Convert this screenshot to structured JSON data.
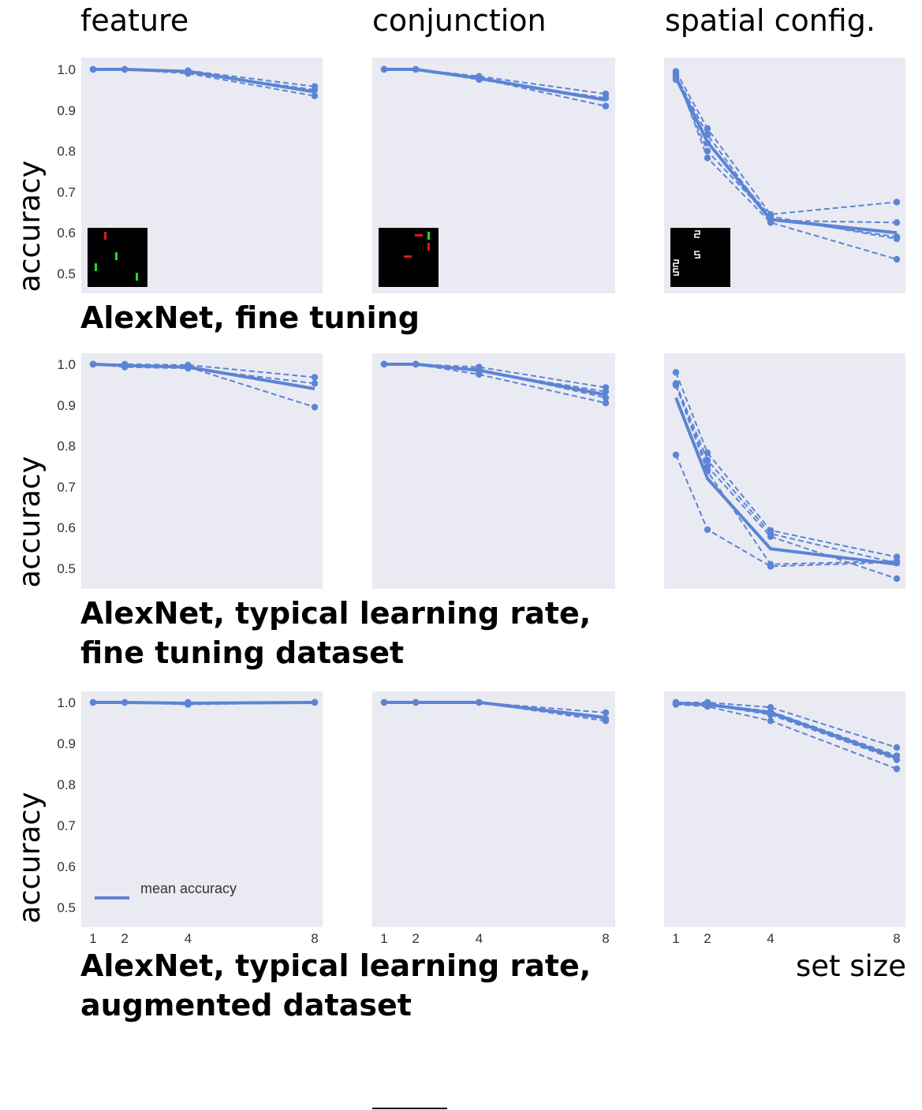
{
  "chart_data": {
    "type": "line",
    "column_titles": [
      "feature",
      "conjunction",
      "spatial config."
    ],
    "row_titles": [
      [
        "AlexNet, fine tuning"
      ],
      [
        "AlexNet, typical learning rate,",
        "fine tuning dataset"
      ],
      [
        "AlexNet, typical learning rate,",
        "augmented dataset"
      ]
    ],
    "ylabel": "accuracy",
    "xlabel": "set size",
    "x": [
      1,
      2,
      4,
      8
    ],
    "xticks": [
      "1",
      "2",
      "4",
      "8"
    ],
    "yticks": [
      "0.5",
      "0.6",
      "0.7",
      "0.8",
      "0.9",
      "1.0"
    ],
    "ylim": [
      0.45,
      1.02
    ],
    "xlim": [
      0.9,
      8.25
    ],
    "legend": {
      "label": "mean accuracy",
      "placement": "lower-left"
    },
    "colors": {
      "line": "#5b84d4",
      "panel_bg": "#eaeaf2"
    },
    "panels": [
      {
        "row": 0,
        "col": 0,
        "mean": [
          1.0,
          1.0,
          0.995,
          0.945
        ],
        "runs": [
          [
            1.0,
            1.0,
            0.997,
            0.958
          ],
          [
            1.0,
            1.0,
            0.99,
            0.935
          ],
          [
            1.0,
            1.0,
            0.993,
            0.95
          ]
        ]
      },
      {
        "row": 0,
        "col": 1,
        "mean": [
          1.0,
          1.0,
          0.978,
          0.925
        ],
        "runs": [
          [
            1.0,
            1.0,
            0.983,
            0.94
          ],
          [
            1.0,
            1.0,
            0.978,
            0.91
          ],
          [
            1.0,
            1.0,
            0.975,
            0.93
          ]
        ]
      },
      {
        "row": 0,
        "col": 2,
        "mean": [
          0.98,
          0.822,
          0.632,
          0.6
        ],
        "runs": [
          [
            0.995,
            0.855,
            0.645,
            0.675
          ],
          [
            0.985,
            0.84,
            0.63,
            0.625
          ],
          [
            0.975,
            0.82,
            0.64,
            0.585
          ],
          [
            0.99,
            0.783,
            0.625,
            0.535
          ],
          [
            0.98,
            0.8,
            0.635,
            0.59
          ]
        ]
      },
      {
        "row": 1,
        "col": 0,
        "mean": [
          1.0,
          0.997,
          0.993,
          0.94
        ],
        "runs": [
          [
            1.0,
            1.0,
            0.998,
            0.968
          ],
          [
            1.0,
            0.993,
            0.99,
            0.953
          ],
          [
            1.0,
            0.998,
            0.993,
            0.895
          ]
        ]
      },
      {
        "row": 1,
        "col": 1,
        "mean": [
          1.0,
          1.0,
          0.985,
          0.925
        ],
        "runs": [
          [
            1.0,
            1.0,
            0.993,
            0.943
          ],
          [
            1.0,
            1.0,
            0.983,
            0.933
          ],
          [
            1.0,
            1.0,
            0.975,
            0.905
          ],
          [
            1.0,
            1.0,
            0.988,
            0.918
          ]
        ]
      },
      {
        "row": 1,
        "col": 2,
        "mean": [
          0.918,
          0.72,
          0.548,
          0.51
        ],
        "runs": [
          [
            0.98,
            0.783,
            0.593,
            0.528
          ],
          [
            0.953,
            0.765,
            0.585,
            0.513
          ],
          [
            0.95,
            0.75,
            0.578,
            0.475
          ],
          [
            0.778,
            0.595,
            0.505,
            0.515
          ],
          [
            0.948,
            0.738,
            0.51,
            0.518
          ]
        ]
      },
      {
        "row": 2,
        "col": 0,
        "mean": [
          1.0,
          1.0,
          0.998,
          1.0
        ],
        "runs": [
          [
            1.0,
            1.0,
            1.0,
            1.0
          ],
          [
            1.0,
            1.0,
            0.995,
            1.0
          ]
        ]
      },
      {
        "row": 2,
        "col": 1,
        "mean": [
          1.0,
          1.0,
          1.0,
          0.963
        ],
        "runs": [
          [
            1.0,
            1.0,
            1.0,
            0.975
          ],
          [
            1.0,
            1.0,
            1.0,
            0.955
          ],
          [
            1.0,
            1.0,
            1.0,
            0.96
          ]
        ]
      },
      {
        "row": 2,
        "col": 2,
        "mean": [
          0.998,
          0.995,
          0.975,
          0.865
        ],
        "runs": [
          [
            1.0,
            1.0,
            0.988,
            0.89
          ],
          [
            1.0,
            0.997,
            0.978,
            0.87
          ],
          [
            0.995,
            0.99,
            0.955,
            0.838
          ],
          [
            0.998,
            0.995,
            0.97,
            0.86
          ]
        ]
      }
    ]
  }
}
